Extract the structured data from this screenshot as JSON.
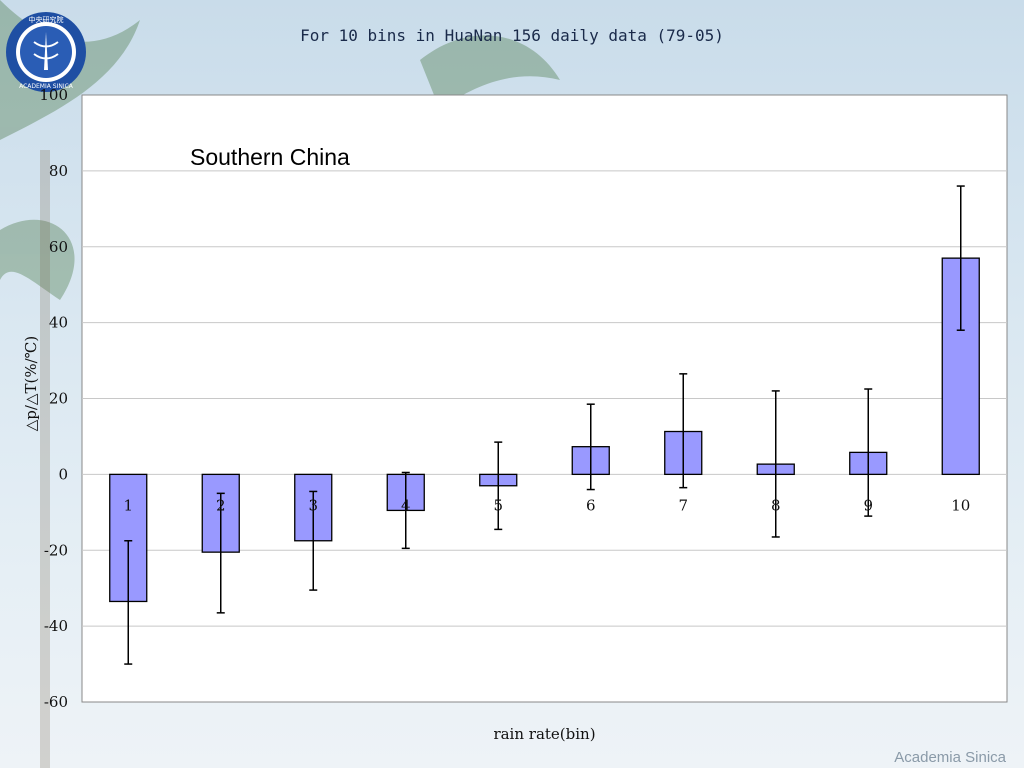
{
  "slide": {
    "brand": "Academia Sinica"
  },
  "chart_data": {
    "type": "bar",
    "title": "For 10 bins in HuaNan 156 daily data (79-05)",
    "annotation": "Southern China",
    "xlabel": "rain rate(bin)",
    "ylabel": "△p/△T(%/℃)",
    "ylim": [
      -60,
      100
    ],
    "yticks": [
      -60,
      -40,
      -20,
      0,
      20,
      40,
      60,
      80,
      100
    ],
    "grid": true,
    "categories": [
      "1",
      "2",
      "3",
      "4",
      "5",
      "6",
      "7",
      "8",
      "9",
      "10"
    ],
    "series": [
      {
        "name": "△p/△T",
        "values": [
          -33.5,
          -20.5,
          -17.5,
          -9.5,
          -3,
          7.3,
          11.3,
          2.7,
          5.8,
          57
        ],
        "error_low": [
          -50,
          -36.5,
          -30.5,
          -19.5,
          -14.5,
          -4,
          -3.5,
          -16.5,
          -11,
          38
        ],
        "error_high": [
          -17.5,
          -5,
          -4.5,
          0.5,
          8.5,
          18.5,
          26.5,
          22,
          22.5,
          76
        ],
        "color": "#9999ff",
        "edge_color": "#000000"
      }
    ]
  }
}
